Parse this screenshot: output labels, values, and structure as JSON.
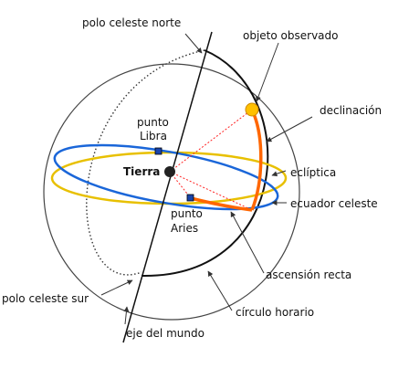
{
  "labels": {
    "north_pole": "polo celeste norte",
    "observed_object": "objeto observado",
    "declination": "declinación",
    "libra_point_line1": "punto",
    "libra_point_line2": "Libra",
    "earth": "Tierra",
    "ecliptic": "eclíptica",
    "celestial_equator": "ecuador celeste",
    "aries_point_line1": "punto",
    "aries_point_line2": "Aries",
    "right_ascension": "ascensión recta",
    "south_pole": "polo celeste sur",
    "hour_circle": "círculo horario",
    "world_axis": "eje del mundo"
  },
  "colors": {
    "sphere_outline": "#444444",
    "hour_circle": "#111111",
    "ecliptic": "#e8c000",
    "celestial_equator": "#1a66d9",
    "declination_arc": "#ff6600",
    "right_ascension_arc": "#ff6600",
    "object": "#ffc000",
    "earth": "#222222",
    "guide_lines": "#ff2222",
    "equinox_points": "#1a44aa"
  }
}
